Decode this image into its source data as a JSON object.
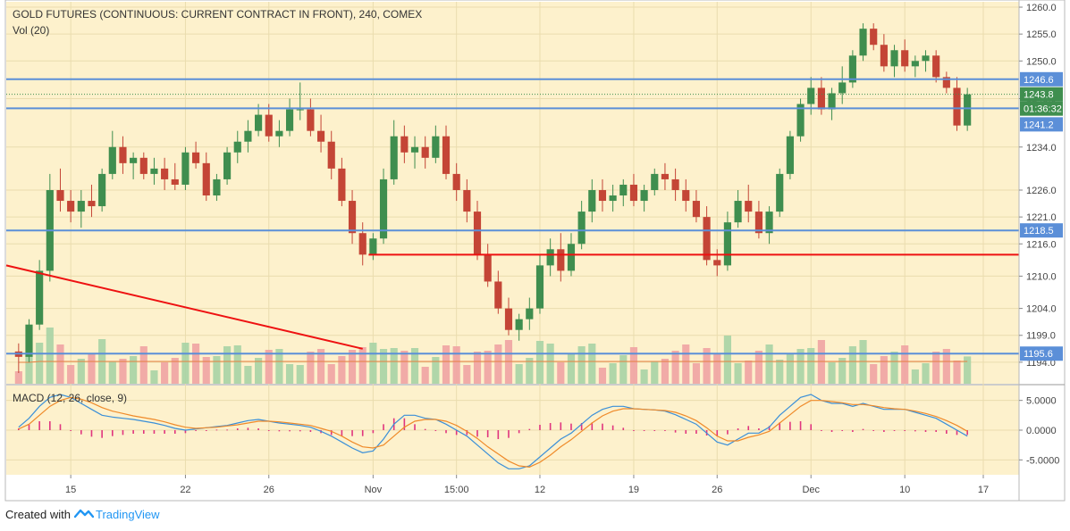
{
  "colors": {
    "background": "#fdf1cc",
    "up": "#3f8e4f",
    "down": "#c44536",
    "hline": "#5b8fd8",
    "redline": "#ee1111",
    "macd": "#3a8fd8",
    "signal": "#ef8a29",
    "hist": "#e0357e",
    "volup": "#a7d3a5",
    "voldown": "#f0a3a3",
    "volma": "#e87e3f"
  },
  "header": {
    "title": "GOLD FUTURES (CONTINUOUS: CURRENT CONTRACT IN FRONT), 240, COMEX",
    "vol_label": "Vol (20)",
    "macd_label": "MACD (12, 26, close, 9)"
  },
  "footer": {
    "created_with": "Created with",
    "brand": "TradingView"
  },
  "chart_data": {
    "type": "candlestick",
    "symbol": "GOLD FUTURES (CONTINUOUS: CURRENT CONTRACT IN FRONT)",
    "interval": "240",
    "exchange": "COMEX",
    "price_axis_ticks": [
      "1260.0",
      "1255.0",
      "1250.0",
      "1243.0",
      "1234.0",
      "1226.0",
      "1221.0",
      "1216.0",
      "1210.0",
      "1204.0",
      "1199.0",
      "1194.0"
    ],
    "macd_axis_ticks": [
      "5.0000",
      "0.0000",
      "-5.0000"
    ],
    "x_tick_labels": [
      "15",
      "22",
      "26",
      "Nov",
      "15:00",
      "12",
      "19",
      "26",
      "Dec",
      "10",
      "17"
    ],
    "horizontal_levels": [
      1246.6,
      1241.2,
      1218.5,
      1195.6
    ],
    "last_price": 1243.8,
    "countdown": "01:36:32",
    "price_labels": [
      "1246.6",
      "1243.8",
      "01:36:32",
      "1241.2",
      "1218.5",
      "1195.6"
    ],
    "support_line": 1214.0,
    "trendline": {
      "from": [
        "Oct 11",
        1212.0
      ],
      "to": [
        "Oct 31",
        1196.5
      ]
    },
    "price_range": [
      1190,
      1261
    ],
    "macd_range": [
      -7.5,
      7.5
    ],
    "candles": [
      [
        1196.0,
        1197.5,
        1192.0,
        1195.0
      ],
      [
        1195.0,
        1202.0,
        1194.0,
        1201.0
      ],
      [
        1201.0,
        1213.0,
        1200.0,
        1211.0
      ],
      [
        1211.0,
        1229.0,
        1209.0,
        1226.0
      ],
      [
        1226.0,
        1230.0,
        1222.0,
        1224.0
      ],
      [
        1224.0,
        1226.0,
        1220.0,
        1222.0
      ],
      [
        1222.0,
        1226.0,
        1219.0,
        1224.0
      ],
      [
        1224.0,
        1227.0,
        1221.0,
        1223.0
      ],
      [
        1223.0,
        1230.0,
        1222.0,
        1229.0
      ],
      [
        1229.0,
        1237.0,
        1228.0,
        1234.0
      ],
      [
        1234.0,
        1236.0,
        1229.0,
        1231.0
      ],
      [
        1231.0,
        1233.0,
        1228.0,
        1232.0
      ],
      [
        1232.0,
        1233.0,
        1228.0,
        1229.0
      ],
      [
        1229.0,
        1232.0,
        1227.0,
        1230.0
      ],
      [
        1230.0,
        1232.0,
        1226.0,
        1228.0
      ],
      [
        1228.0,
        1231.0,
        1226.0,
        1227.0
      ],
      [
        1227.0,
        1234.0,
        1226.0,
        1233.0
      ],
      [
        1233.0,
        1235.0,
        1230.0,
        1231.0
      ],
      [
        1231.0,
        1233.0,
        1224.0,
        1225.0
      ],
      [
        1225.0,
        1229.0,
        1224.0,
        1228.0
      ],
      [
        1228.0,
        1234.0,
        1227.0,
        1233.0
      ],
      [
        1233.0,
        1237.0,
        1231.0,
        1235.0
      ],
      [
        1235.0,
        1239.0,
        1233.0,
        1237.0
      ],
      [
        1237.0,
        1242.0,
        1236.0,
        1240.0
      ],
      [
        1240.0,
        1242.0,
        1235.0,
        1236.0
      ],
      [
        1236.0,
        1239.0,
        1234.0,
        1237.0
      ],
      [
        1237.0,
        1243.0,
        1236.0,
        1241.0
      ],
      [
        1241.0,
        1246.0,
        1239.0,
        1241.0
      ],
      [
        1241.0,
        1243.0,
        1236.0,
        1237.0
      ],
      [
        1237.0,
        1240.0,
        1233.0,
        1235.0
      ],
      [
        1235.0,
        1237.0,
        1228.0,
        1230.0
      ],
      [
        1230.0,
        1232.0,
        1223.0,
        1224.0
      ],
      [
        1224.0,
        1226.0,
        1216.0,
        1218.0
      ],
      [
        1218.0,
        1220.0,
        1212.0,
        1214.0
      ],
      [
        1214.0,
        1218.0,
        1213.0,
        1217.0
      ],
      [
        1217.0,
        1230.0,
        1216.0,
        1228.0
      ],
      [
        1228.0,
        1239.0,
        1227.0,
        1236.0
      ],
      [
        1236.0,
        1238.0,
        1231.0,
        1233.0
      ],
      [
        1233.0,
        1236.0,
        1230.0,
        1234.0
      ],
      [
        1234.0,
        1236.0,
        1230.0,
        1232.0
      ],
      [
        1232.0,
        1238.0,
        1231.0,
        1236.0
      ],
      [
        1236.0,
        1238.0,
        1228.0,
        1229.0
      ],
      [
        1229.0,
        1231.0,
        1224.0,
        1226.0
      ],
      [
        1226.0,
        1228.0,
        1220.0,
        1222.0
      ],
      [
        1222.0,
        1224.0,
        1213.0,
        1214.0
      ],
      [
        1214.0,
        1216.0,
        1208.0,
        1209.0
      ],
      [
        1209.0,
        1211.0,
        1203.0,
        1204.0
      ],
      [
        1204.0,
        1206.0,
        1199.0,
        1200.0
      ],
      [
        1200.0,
        1203.0,
        1198.0,
        1202.0
      ],
      [
        1202.0,
        1206.0,
        1200.0,
        1204.0
      ],
      [
        1204.0,
        1214.0,
        1203.0,
        1212.0
      ],
      [
        1212.0,
        1217.0,
        1210.0,
        1215.0
      ],
      [
        1215.0,
        1218.0,
        1209.0,
        1211.0
      ],
      [
        1211.0,
        1218.0,
        1210.0,
        1216.0
      ],
      [
        1216.0,
        1224.0,
        1215.0,
        1222.0
      ],
      [
        1222.0,
        1228.0,
        1220.0,
        1226.0
      ],
      [
        1226.0,
        1228.0,
        1222.0,
        1224.0
      ],
      [
        1224.0,
        1227.0,
        1222.0,
        1225.0
      ],
      [
        1225.0,
        1228.0,
        1223.0,
        1227.0
      ],
      [
        1227.0,
        1229.0,
        1223.0,
        1224.0
      ],
      [
        1224.0,
        1227.0,
        1222.0,
        1226.0
      ],
      [
        1226.0,
        1230.0,
        1225.0,
        1229.0
      ],
      [
        1229.0,
        1231.0,
        1226.0,
        1228.0
      ],
      [
        1228.0,
        1230.0,
        1224.0,
        1226.0
      ],
      [
        1226.0,
        1228.0,
        1222.0,
        1224.0
      ],
      [
        1224.0,
        1226.0,
        1220.0,
        1221.0
      ],
      [
        1221.0,
        1223.0,
        1212.0,
        1213.0
      ],
      [
        1213.0,
        1215.0,
        1210.0,
        1212.0
      ],
      [
        1212.0,
        1222.0,
        1211.0,
        1220.0
      ],
      [
        1220.0,
        1226.0,
        1219.0,
        1224.0
      ],
      [
        1224.0,
        1227.0,
        1220.0,
        1222.0
      ],
      [
        1222.0,
        1224.0,
        1217.0,
        1218.0
      ],
      [
        1218.0,
        1223.0,
        1216.0,
        1222.0
      ],
      [
        1222.0,
        1230.0,
        1221.0,
        1229.0
      ],
      [
        1229.0,
        1237.0,
        1228.0,
        1236.0
      ],
      [
        1236.0,
        1243.0,
        1235.0,
        1242.0
      ],
      [
        1242.0,
        1247.0,
        1240.0,
        1245.0
      ],
      [
        1245.0,
        1247.0,
        1240.0,
        1241.0
      ],
      [
        1241.0,
        1245.0,
        1239.0,
        1244.0
      ],
      [
        1244.0,
        1249.0,
        1242.0,
        1246.0
      ],
      [
        1246.0,
        1252.0,
        1245.0,
        1251.0
      ],
      [
        1251.0,
        1257.0,
        1250.0,
        1256.0
      ],
      [
        1256.0,
        1257.0,
        1252.0,
        1253.0
      ],
      [
        1253.0,
        1255.0,
        1248.0,
        1249.0
      ],
      [
        1249.0,
        1253.0,
        1247.0,
        1252.0
      ],
      [
        1252.0,
        1254.0,
        1248.0,
        1249.0
      ],
      [
        1249.0,
        1251.0,
        1247.0,
        1250.0
      ],
      [
        1250.0,
        1252.0,
        1248.0,
        1251.0
      ],
      [
        1251.0,
        1252.0,
        1246.0,
        1247.0
      ],
      [
        1247.0,
        1248.0,
        1244.0,
        1245.0
      ],
      [
        1245.0,
        1247.0,
        1237.0,
        1238.0
      ],
      [
        1238.0,
        1245.0,
        1237.0,
        1243.8
      ]
    ],
    "volume_ma": [
      2,
      2,
      3,
      3,
      3,
      3,
      3,
      3,
      3,
      3,
      3,
      3,
      3,
      3,
      3,
      3,
      3,
      3,
      3,
      3,
      3,
      3,
      3,
      3,
      3,
      3,
      3,
      3,
      3,
      3,
      3,
      3,
      3,
      3,
      3,
      3,
      3,
      3,
      3,
      3,
      3,
      3,
      3,
      3,
      3,
      3,
      3,
      3,
      3,
      3,
      3,
      3,
      3,
      3,
      3,
      3,
      3,
      3,
      3,
      3,
      3,
      3,
      3,
      3,
      3,
      3,
      3,
      3,
      3,
      3,
      3,
      3,
      3,
      3,
      3,
      3,
      3,
      3,
      3,
      3,
      3,
      3,
      3,
      3,
      3,
      3,
      3,
      3,
      3,
      3,
      3,
      3
    ],
    "macd": [
      0.5,
      2.0,
      4.0,
      5.5,
      6.0,
      5.5,
      4.5,
      3.5,
      2.5,
      2.2,
      2.0,
      1.8,
      1.5,
      1.2,
      0.8,
      0.3,
      0.0,
      0.2,
      0.4,
      0.6,
      0.8,
      1.2,
      1.6,
      1.8,
      1.5,
      1.2,
      1.0,
      0.8,
      0.5,
      -0.2,
      -1.0,
      -2.0,
      -3.0,
      -3.8,
      -3.5,
      -1.5,
      1.0,
      2.5,
      2.5,
      2.0,
      1.8,
      1.0,
      0.0,
      -1.0,
      -2.5,
      -4.0,
      -5.5,
      -6.5,
      -6.5,
      -6.0,
      -4.5,
      -3.0,
      -1.5,
      -0.5,
      1.0,
      2.5,
      3.5,
      4.0,
      4.0,
      3.6,
      3.5,
      3.4,
      3.2,
      2.6,
      1.8,
      1.0,
      -0.5,
      -2.0,
      -2.5,
      -1.5,
      -0.5,
      -0.5,
      0.5,
      2.5,
      4.0,
      5.5,
      6.0,
      5.0,
      4.5,
      4.5,
      4.0,
      4.5,
      4.0,
      3.5,
      3.5,
      3.5,
      3.0,
      2.5,
      2.0,
      1.0,
      0.0,
      -1.0
    ],
    "signal": [
      0.2,
      1.0,
      2.5,
      4.0,
      5.0,
      5.5,
      5.2,
      4.6,
      3.8,
      3.2,
      2.8,
      2.4,
      2.1,
      1.8,
      1.4,
      0.9,
      0.5,
      0.3,
      0.4,
      0.5,
      0.7,
      0.9,
      1.2,
      1.5,
      1.5,
      1.4,
      1.2,
      1.0,
      0.8,
      0.3,
      -0.2,
      -1.0,
      -2.0,
      -2.8,
      -3.0,
      -2.5,
      -1.0,
      0.5,
      1.5,
      1.8,
      1.8,
      1.5,
      0.8,
      -0.2,
      -1.4,
      -2.8,
      -4.0,
      -5.2,
      -6.0,
      -6.2,
      -5.4,
      -4.2,
      -2.8,
      -1.6,
      -0.2,
      1.2,
      2.4,
      3.2,
      3.6,
      3.6,
      3.5,
      3.4,
      3.3,
      3.0,
      2.4,
      1.6,
      0.4,
      -1.0,
      -1.8,
      -1.8,
      -1.2,
      -0.8,
      -0.2,
      1.2,
      2.6,
      4.0,
      5.0,
      5.0,
      4.8,
      4.6,
      4.3,
      4.3,
      4.1,
      3.8,
      3.6,
      3.5,
      3.2,
      2.8,
      2.3,
      1.6,
      0.8,
      -0.2
    ]
  }
}
